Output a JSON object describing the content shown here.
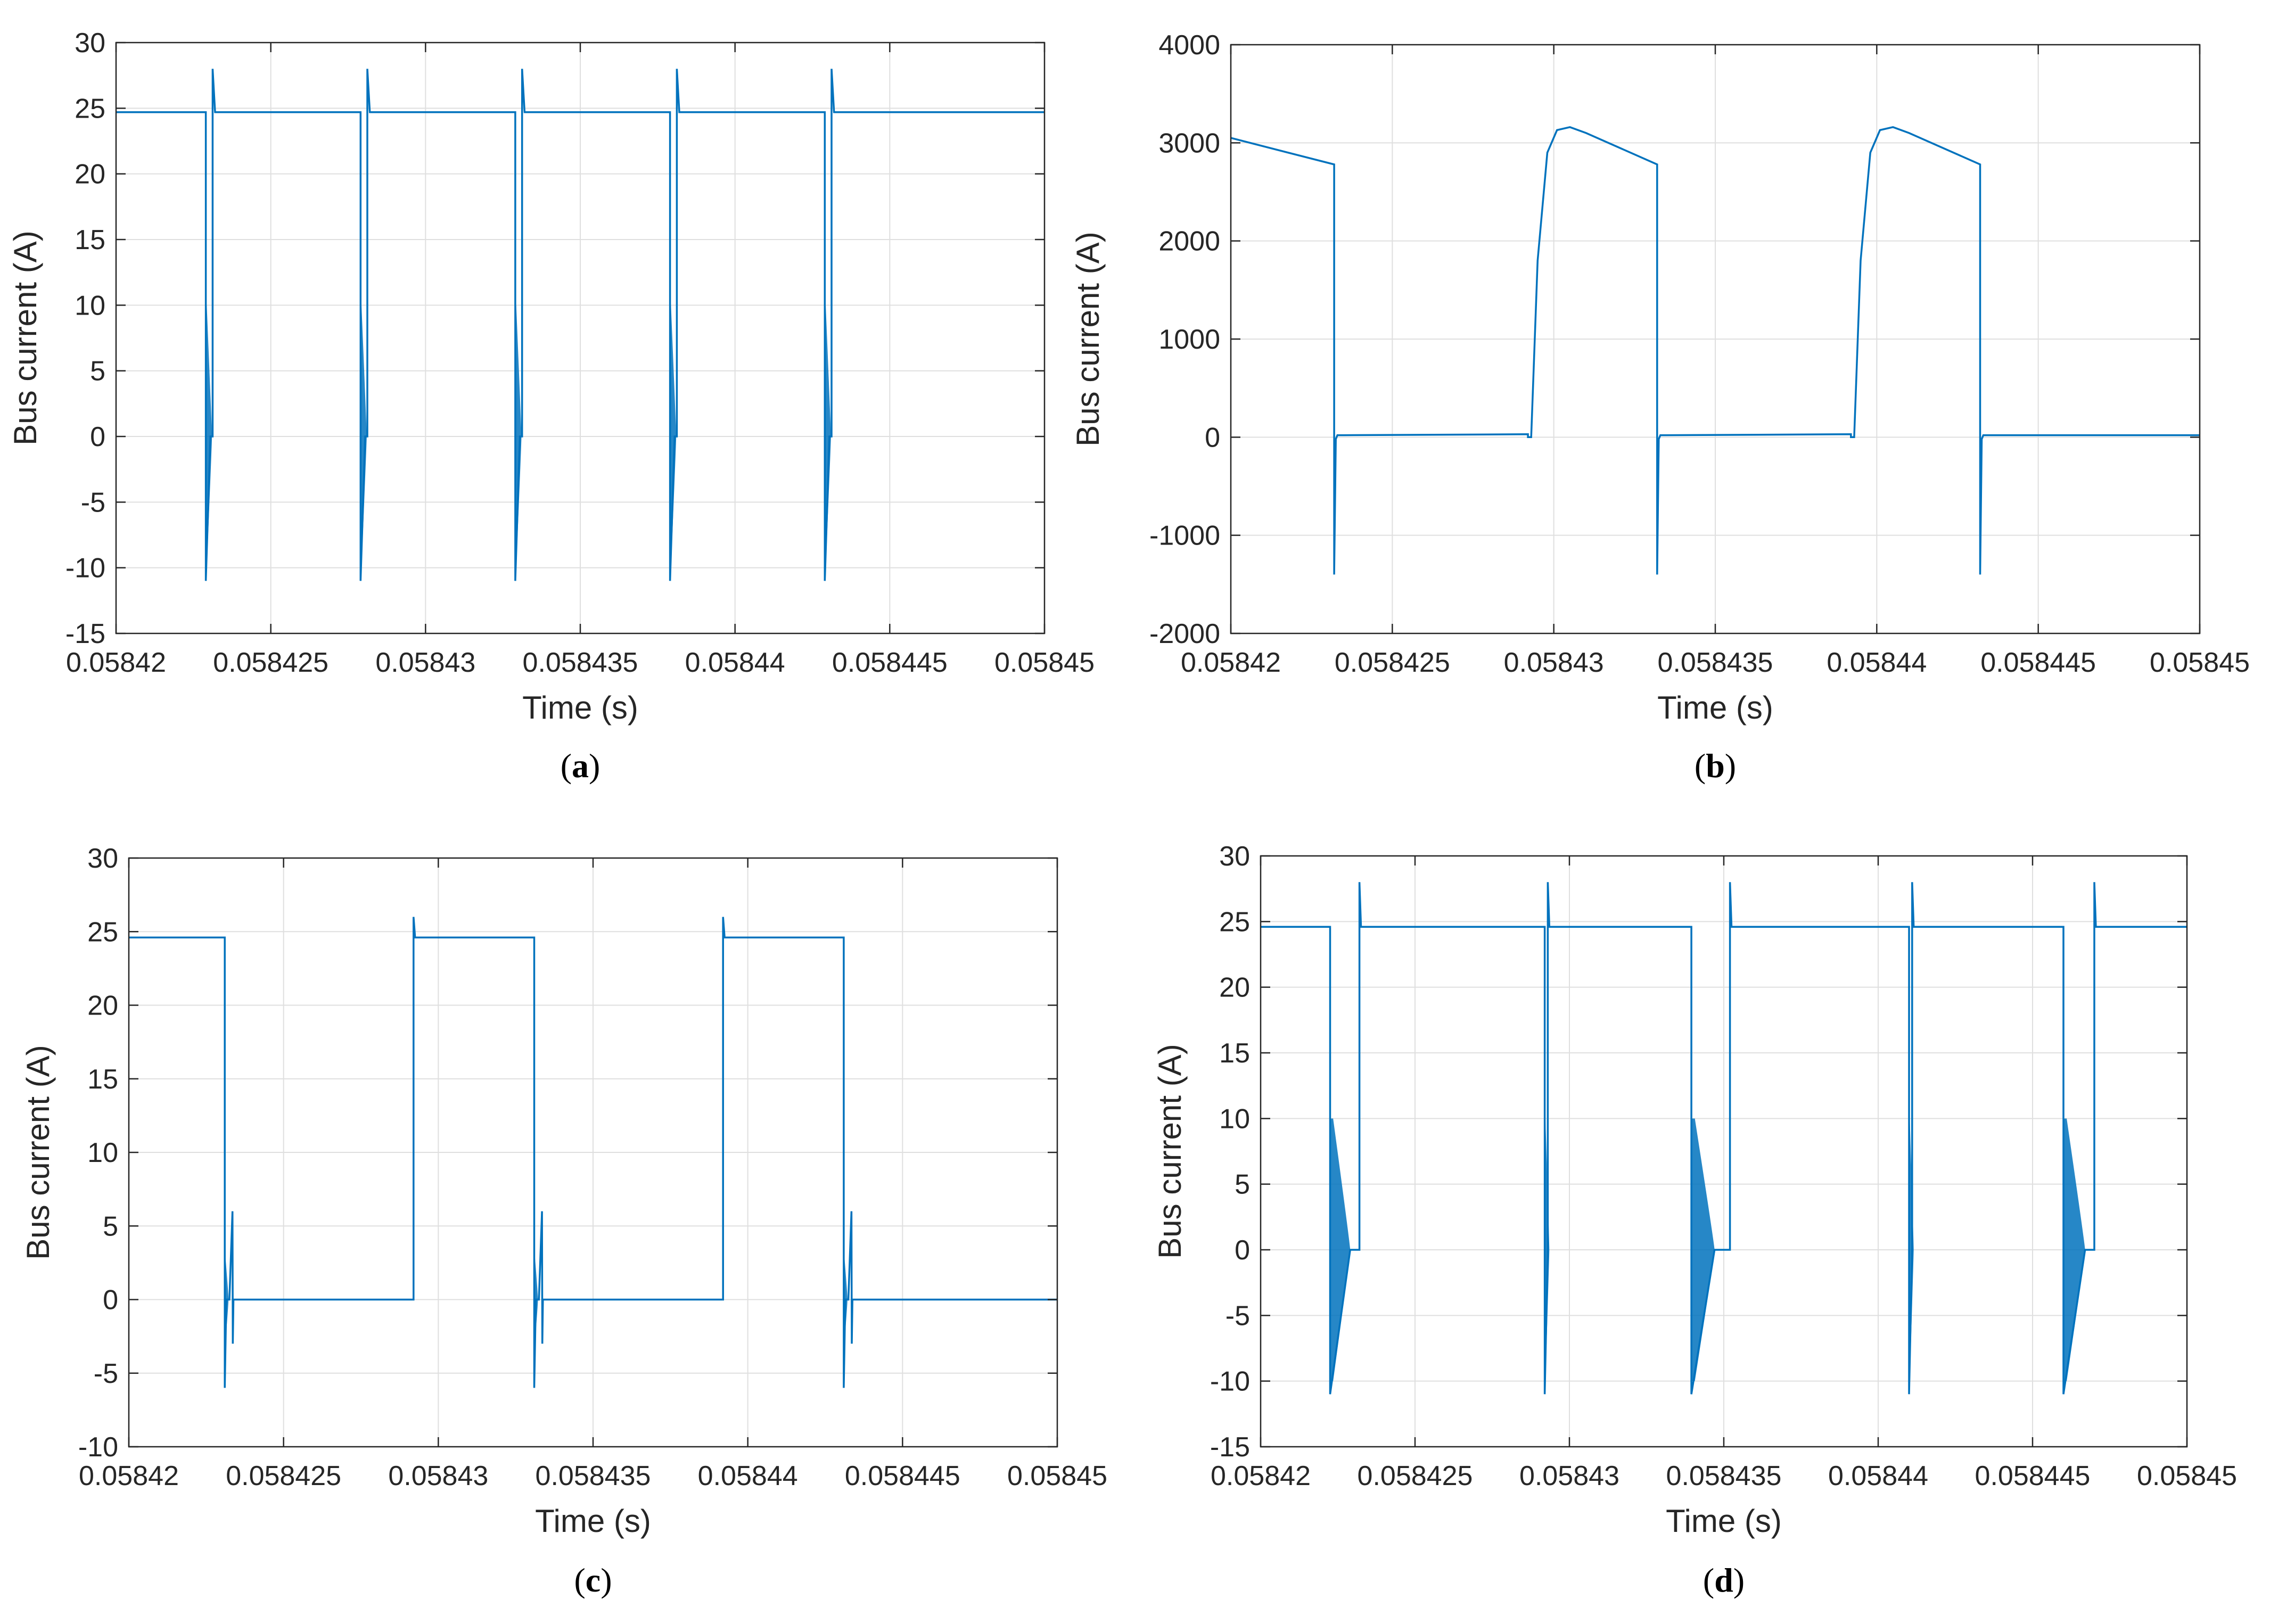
{
  "figure": {
    "line_color": "#0072bd",
    "grid_color": "#dfdfdf",
    "axis_color": "#262626"
  },
  "chart_data": [
    {
      "id": "a",
      "caption_letter": "a",
      "type": "line",
      "xlabel": "Time (s)",
      "ylabel": "Bus current (A)",
      "xlim": [
        0.05842,
        0.05845
      ],
      "ylim": [
        -15,
        30
      ],
      "xticks": [
        0.05842,
        0.058425,
        0.05843,
        0.058435,
        0.05844,
        0.058445,
        0.05845
      ],
      "xtick_labels": [
        "0.05842",
        "0.058425",
        "0.05843",
        "0.058435",
        "0.05844",
        "0.058445",
        "0.05845"
      ],
      "yticks": [
        -15,
        -10,
        -5,
        0,
        5,
        10,
        15,
        20,
        25,
        30
      ],
      "ytick_labels": [
        "-15",
        "-10",
        "-5",
        "0",
        "5",
        "10",
        "15",
        "20",
        "25",
        "30"
      ],
      "grid": true,
      "series": [
        {
          "name": "bus current",
          "x": [
            0.05842,
            0.0584229,
            0.0584229,
            0.05842305,
            0.05842312,
            0.05842312,
            0.0584232,
            0.0584232,
            0.0584279,
            0.0584279,
            0.05842805,
            0.05842812,
            0.05842812,
            0.0584282,
            0.0584282,
            0.0584329,
            0.0584329,
            0.05843305,
            0.05843312,
            0.05843312,
            0.0584332,
            0.0584332,
            0.0584379,
            0.0584379,
            0.05843805,
            0.05843812,
            0.05843812,
            0.0584382,
            0.0584382,
            0.0584429,
            0.0584429,
            0.05844305,
            0.05844312,
            0.05844312,
            0.0584432,
            0.0584432,
            0.05845
          ],
          "y": [
            24.7,
            24.7,
            -11,
            0,
            0,
            28,
            24.7,
            24.7,
            24.7,
            -11,
            0,
            0,
            28,
            24.7,
            24.7,
            24.7,
            -11,
            0,
            0,
            28,
            24.7,
            24.7,
            24.7,
            -11,
            0,
            0,
            28,
            24.7,
            24.7,
            24.7,
            -11,
            0,
            0,
            28,
            24.7,
            24.7,
            24.7
          ]
        }
      ],
      "ringing": [
        {
          "x0": 0.0584229,
          "x1": 0.0584231,
          "top": 10,
          "bottom": -10
        },
        {
          "x0": 0.0584279,
          "x1": 0.0584281,
          "top": 10,
          "bottom": -10
        },
        {
          "x0": 0.0584329,
          "x1": 0.0584331,
          "top": 10,
          "bottom": -10
        },
        {
          "x0": 0.0584379,
          "x1": 0.0584381,
          "top": 10,
          "bottom": -10
        },
        {
          "x0": 0.0584429,
          "x1": 0.0584431,
          "top": 10,
          "bottom": -10
        }
      ]
    },
    {
      "id": "b",
      "caption_letter": "b",
      "type": "line",
      "xlabel": "Time (s)",
      "ylabel": "Bus current (A)",
      "xlim": [
        0.05842,
        0.05845
      ],
      "ylim": [
        -2000,
        4000
      ],
      "xticks": [
        0.05842,
        0.058425,
        0.05843,
        0.058435,
        0.05844,
        0.058445,
        0.05845
      ],
      "xtick_labels": [
        "0.05842",
        "0.058425",
        "0.05843",
        "0.058435",
        "0.05844",
        "0.058445",
        "0.05845"
      ],
      "yticks": [
        -2000,
        -1000,
        0,
        1000,
        2000,
        3000,
        4000
      ],
      "ytick_labels": [
        "-2000",
        "-1000",
        "0",
        "1000",
        "2000",
        "3000",
        "4000"
      ],
      "grid": true,
      "series": [
        {
          "name": "bus current",
          "x": [
            0.05842,
            0.0584232,
            0.0584232,
            0.05842325,
            0.0584233,
            0.0584235,
            0.0584292,
            0.0584292,
            0.0584293,
            0.0584295,
            0.0584298,
            0.0584301,
            0.0584305,
            0.058431,
            0.0584332,
            0.0584332,
            0.05843325,
            0.0584333,
            0.0584335,
            0.0584392,
            0.0584392,
            0.0584393,
            0.0584395,
            0.0584398,
            0.0584401,
            0.0584405,
            0.058441,
            0.0584432,
            0.0584432,
            0.05844325,
            0.0584433,
            0.0584435,
            0.05845
          ],
          "y": [
            3050,
            2780,
            -1400,
            -20,
            20,
            20,
            30,
            0,
            0,
            1800,
            2900,
            3130,
            3160,
            3100,
            2780,
            -1400,
            -20,
            20,
            20,
            30,
            0,
            0,
            1800,
            2900,
            3130,
            3160,
            3100,
            2780,
            -1400,
            -20,
            20,
            20,
            20
          ]
        }
      ],
      "ringing": []
    },
    {
      "id": "c",
      "caption_letter": "c",
      "type": "line",
      "xlabel": "Time (s)",
      "ylabel": "Bus current (A)",
      "xlim": [
        0.05842,
        0.05845
      ],
      "ylim": [
        -10,
        30
      ],
      "xticks": [
        0.05842,
        0.058425,
        0.05843,
        0.058435,
        0.05844,
        0.058445,
        0.05845
      ],
      "xtick_labels": [
        "0.05842",
        "0.058425",
        "0.05843",
        "0.058435",
        "0.05844",
        "0.058445",
        "0.05845"
      ],
      "yticks": [
        -10,
        -5,
        0,
        5,
        10,
        15,
        20,
        25,
        30
      ],
      "ytick_labels": [
        "-10",
        "-5",
        "0",
        "5",
        "10",
        "15",
        "20",
        "25",
        "30"
      ],
      "grid": true,
      "series": [
        {
          "name": "bus current",
          "x": [
            0.05842,
            0.0584231,
            0.0584231,
            0.05842315,
            0.05842325,
            0.05842335,
            0.05842336,
            0.05842338,
            0.0584234,
            0.0584292,
            0.0584292,
            0.05842925,
            0.0584293,
            0.0584331,
            0.0584331,
            0.05843315,
            0.05843325,
            0.05843335,
            0.05843336,
            0.05843338,
            0.0584334,
            0.0584392,
            0.0584392,
            0.05843925,
            0.0584393,
            0.0584431,
            0.0584431,
            0.05844315,
            0.05844325,
            0.05844335,
            0.05844336,
            0.05844338,
            0.0584434,
            0.05845
          ],
          "y": [
            24.6,
            24.6,
            -6,
            0,
            0,
            6,
            -3,
            0,
            0,
            0,
            26,
            24.6,
            24.6,
            24.6,
            -6,
            0,
            0,
            6,
            -3,
            0,
            0,
            0,
            26,
            24.6,
            24.6,
            24.6,
            -6,
            0,
            0,
            6,
            -3,
            0,
            0,
            0
          ]
        }
      ],
      "ringing": [
        {
          "x0": 0.0584231,
          "x1": 0.05842322,
          "top": 3,
          "bottom": -3
        },
        {
          "x0": 0.0584331,
          "x1": 0.05843322,
          "top": 3,
          "bottom": -3
        },
        {
          "x0": 0.0584431,
          "x1": 0.05844322,
          "top": 3,
          "bottom": -3
        }
      ]
    },
    {
      "id": "d",
      "caption_letter": "d",
      "type": "line",
      "xlabel": "Time (s)",
      "ylabel": "Bus current (A)",
      "xlim": [
        0.05842,
        0.05845
      ],
      "ylim": [
        -15,
        30
      ],
      "xticks": [
        0.05842,
        0.058425,
        0.05843,
        0.058435,
        0.05844,
        0.058445,
        0.05845
      ],
      "xtick_labels": [
        "0.05842",
        "0.058425",
        "0.05843",
        "0.058435",
        "0.05844",
        "0.058445",
        "0.05845"
      ],
      "yticks": [
        -15,
        -10,
        -5,
        0,
        5,
        10,
        15,
        20,
        25,
        30
      ],
      "ytick_labels": [
        "-15",
        "-10",
        "-5",
        "0",
        "5",
        "10",
        "15",
        "20",
        "25",
        "30"
      ],
      "grid": true,
      "series": [
        {
          "name": "bus current",
          "x": [
            0.05842,
            0.05842225,
            0.05842225,
            0.0584229,
            0.0584232,
            0.0584232,
            0.05842325,
            0.0584292,
            0.0584292,
            0.0584293,
            0.0584293,
            0.05842935,
            0.05843395,
            0.05843395,
            0.0584347,
            0.0584352,
            0.0584352,
            0.05843525,
            0.058441,
            0.058441,
            0.0584411,
            0.0584411,
            0.05844115,
            0.058446,
            0.058446,
            0.0584467,
            0.058447,
            0.058447,
            0.05844705,
            0.05845
          ],
          "y": [
            24.6,
            24.6,
            -11,
            0,
            0,
            28,
            24.6,
            24.6,
            -11,
            0,
            28,
            24.6,
            24.6,
            -11,
            0,
            0,
            28,
            24.6,
            24.6,
            -11,
            0,
            28,
            24.6,
            24.6,
            -11,
            0,
            0,
            28,
            24.6,
            24.6
          ]
        }
      ],
      "ringing": [
        {
          "x0": 0.05842225,
          "x1": 0.0584229,
          "top": 10,
          "bottom": -10
        },
        {
          "x0": 0.0584292,
          "x1": 0.05842935,
          "top": 10,
          "bottom": -10
        },
        {
          "x0": 0.05843395,
          "x1": 0.0584347,
          "top": 10,
          "bottom": -10
        },
        {
          "x0": 0.058441,
          "x1": 0.05844115,
          "top": 10,
          "bottom": -10
        },
        {
          "x0": 0.058446,
          "x1": 0.0584467,
          "top": 10,
          "bottom": -10
        }
      ]
    }
  ]
}
